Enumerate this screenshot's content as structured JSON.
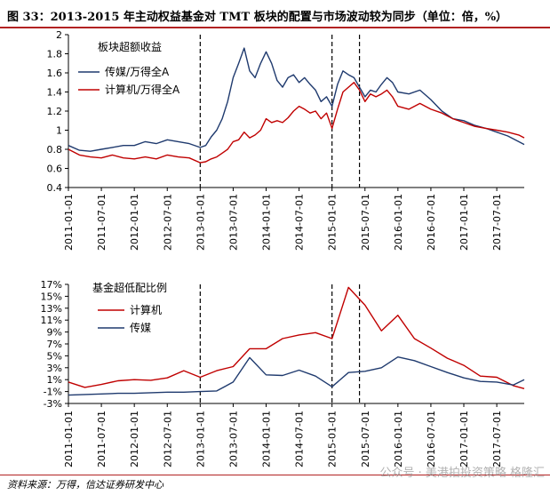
{
  "figure": {
    "title": "图 33：2013-2015 年主动权益基金对 TMT 板块的配置与市场波动较为同步（单位：倍，%）",
    "source": "资料来源：万得，信达证券研发中心",
    "watermark": "公众号 · 美港拍投资策略  格隆汇"
  },
  "chart_data": [
    {
      "type": "line",
      "title": "板块超额收益",
      "xlabel": "",
      "ylabel": "",
      "ylim": [
        0.4,
        2.0
      ],
      "yticks": [
        "0.4",
        "0.6",
        "0.8",
        "1",
        "1.2",
        "1.4",
        "1.6",
        "1.8",
        "2"
      ],
      "xlim": [
        "2011-01-01",
        "2017-12-01"
      ],
      "x_tick_labels": [
        "2011-01-01",
        "2011-07-01",
        "2012-01-01",
        "2012-07-01",
        "2013-01-01",
        "2013-07-01",
        "2014-01-01",
        "2014-07-01",
        "2015-01-01",
        "2015-07-01",
        "2016-01-01",
        "2016-07-01",
        "2017-01-01",
        "2017-07-01"
      ],
      "vertical_markers": [
        "2013-01-01",
        "2015-01-01",
        "2015-06-01"
      ],
      "legend_position": "top-left",
      "grid": false,
      "series": [
        {
          "name": "传媒/万得全A",
          "color": "#1f3a6e",
          "x": [
            "2011-01-01",
            "2011-03-01",
            "2011-05-01",
            "2011-07-01",
            "2011-09-01",
            "2011-11-01",
            "2012-01-01",
            "2012-03-01",
            "2012-05-01",
            "2012-07-01",
            "2012-09-01",
            "2012-11-01",
            "2013-01-01",
            "2013-02-01",
            "2013-03-01",
            "2013-04-01",
            "2013-05-01",
            "2013-06-01",
            "2013-07-01",
            "2013-08-01",
            "2013-09-01",
            "2013-10-01",
            "2013-11-01",
            "2013-12-01",
            "2014-01-01",
            "2014-02-01",
            "2014-03-01",
            "2014-04-01",
            "2014-05-01",
            "2014-06-01",
            "2014-07-01",
            "2014-08-01",
            "2014-09-01",
            "2014-10-01",
            "2014-11-01",
            "2014-12-01",
            "2015-01-01",
            "2015-02-01",
            "2015-03-01",
            "2015-04-01",
            "2015-05-01",
            "2015-06-01",
            "2015-07-01",
            "2015-08-01",
            "2015-09-01",
            "2015-10-01",
            "2015-11-01",
            "2015-12-01",
            "2016-01-01",
            "2016-03-01",
            "2016-05-01",
            "2016-07-01",
            "2016-09-01",
            "2016-11-01",
            "2017-01-01",
            "2017-03-01",
            "2017-05-01",
            "2017-07-01",
            "2017-09-01",
            "2017-11-01",
            "2017-12-01"
          ],
          "values": [
            0.84,
            0.79,
            0.78,
            0.8,
            0.82,
            0.84,
            0.84,
            0.88,
            0.86,
            0.9,
            0.88,
            0.86,
            0.82,
            0.84,
            0.93,
            1.0,
            1.12,
            1.3,
            1.55,
            1.7,
            1.86,
            1.62,
            1.55,
            1.7,
            1.82,
            1.7,
            1.52,
            1.45,
            1.55,
            1.58,
            1.5,
            1.55,
            1.48,
            1.42,
            1.3,
            1.35,
            1.25,
            1.48,
            1.62,
            1.58,
            1.55,
            1.45,
            1.35,
            1.42,
            1.4,
            1.48,
            1.55,
            1.5,
            1.4,
            1.38,
            1.42,
            1.32,
            1.2,
            1.12,
            1.1,
            1.05,
            1.02,
            0.98,
            0.94,
            0.88,
            0.85
          ]
        },
        {
          "name": "计算机/万得全A",
          "color": "#c00000",
          "x": [
            "2011-01-01",
            "2011-03-01",
            "2011-05-01",
            "2011-07-01",
            "2011-09-01",
            "2011-11-01",
            "2012-01-01",
            "2012-03-01",
            "2012-05-01",
            "2012-07-01",
            "2012-09-01",
            "2012-11-01",
            "2013-01-01",
            "2013-02-01",
            "2013-03-01",
            "2013-04-01",
            "2013-05-01",
            "2013-06-01",
            "2013-07-01",
            "2013-08-01",
            "2013-09-01",
            "2013-10-01",
            "2013-11-01",
            "2013-12-01",
            "2014-01-01",
            "2014-02-01",
            "2014-03-01",
            "2014-04-01",
            "2014-05-01",
            "2014-06-01",
            "2014-07-01",
            "2014-08-01",
            "2014-09-01",
            "2014-10-01",
            "2014-11-01",
            "2014-12-01",
            "2015-01-01",
            "2015-02-01",
            "2015-03-01",
            "2015-04-01",
            "2015-05-01",
            "2015-06-01",
            "2015-07-01",
            "2015-08-01",
            "2015-09-01",
            "2015-10-01",
            "2015-11-01",
            "2015-12-01",
            "2016-01-01",
            "2016-03-01",
            "2016-05-01",
            "2016-07-01",
            "2016-09-01",
            "2016-11-01",
            "2017-01-01",
            "2017-03-01",
            "2017-05-01",
            "2017-07-01",
            "2017-09-01",
            "2017-11-01",
            "2017-12-01"
          ],
          "values": [
            0.8,
            0.74,
            0.72,
            0.71,
            0.74,
            0.71,
            0.7,
            0.72,
            0.7,
            0.74,
            0.72,
            0.71,
            0.66,
            0.67,
            0.7,
            0.72,
            0.76,
            0.8,
            0.88,
            0.9,
            0.98,
            0.92,
            0.95,
            1.0,
            1.12,
            1.08,
            1.1,
            1.08,
            1.13,
            1.2,
            1.25,
            1.22,
            1.18,
            1.2,
            1.12,
            1.18,
            1.02,
            1.22,
            1.4,
            1.45,
            1.5,
            1.42,
            1.3,
            1.38,
            1.35,
            1.38,
            1.42,
            1.35,
            1.25,
            1.22,
            1.28,
            1.22,
            1.18,
            1.12,
            1.08,
            1.04,
            1.02,
            1.0,
            0.98,
            0.95,
            0.92
          ]
        }
      ]
    },
    {
      "type": "line",
      "title": "基金超低配比例",
      "xlabel": "",
      "ylabel": "",
      "ylim": [
        -3,
        17
      ],
      "yticks": [
        "-3%",
        "-1%",
        "1%",
        "3%",
        "5%",
        "7%",
        "9%",
        "11%",
        "13%",
        "15%",
        "17%"
      ],
      "xlim": [
        "2011-01-01",
        "2017-12-01"
      ],
      "x_tick_labels": [
        "2011-01-01",
        "2011-07-01",
        "2012-01-01",
        "2012-07-01",
        "2013-01-01",
        "2013-07-01",
        "2014-01-01",
        "2014-07-01",
        "2015-01-01",
        "2015-07-01",
        "2016-01-01",
        "2016-07-01",
        "2017-01-01",
        "2017-07-01"
      ],
      "vertical_markers": [
        "2013-01-01",
        "2015-01-01",
        "2015-06-01"
      ],
      "legend_position": "top-left",
      "grid": false,
      "series": [
        {
          "name": "计算机",
          "color": "#c00000",
          "x": [
            "2011-01-01",
            "2011-04-01",
            "2011-07-01",
            "2011-10-01",
            "2012-01-01",
            "2012-04-01",
            "2012-07-01",
            "2012-10-01",
            "2013-01-01",
            "2013-04-01",
            "2013-07-01",
            "2013-10-01",
            "2014-01-01",
            "2014-04-01",
            "2014-07-01",
            "2014-10-01",
            "2015-01-01",
            "2015-04-01",
            "2015-07-01",
            "2015-10-01",
            "2016-01-01",
            "2016-04-01",
            "2016-07-01",
            "2016-10-01",
            "2017-01-01",
            "2017-04-01",
            "2017-07-01",
            "2017-10-01",
            "2017-12-01"
          ],
          "values": [
            0.6,
            -0.3,
            0.2,
            0.8,
            1.0,
            0.9,
            1.3,
            2.5,
            1.4,
            2.5,
            3.2,
            6.2,
            6.2,
            7.9,
            8.5,
            8.9,
            7.9,
            16.5,
            13.5,
            9.2,
            11.8,
            7.9,
            6.3,
            4.6,
            3.4,
            1.6,
            1.4,
            0.0,
            -0.5
          ]
        },
        {
          "name": "传媒",
          "color": "#1f3a6e",
          "x": [
            "2011-01-01",
            "2011-04-01",
            "2011-07-01",
            "2011-10-01",
            "2012-01-01",
            "2012-04-01",
            "2012-07-01",
            "2012-10-01",
            "2013-01-01",
            "2013-04-01",
            "2013-07-01",
            "2013-10-01",
            "2014-01-01",
            "2014-04-01",
            "2014-07-01",
            "2014-10-01",
            "2015-01-01",
            "2015-04-01",
            "2015-07-01",
            "2015-10-01",
            "2016-01-01",
            "2016-04-01",
            "2016-07-01",
            "2016-10-01",
            "2017-01-01",
            "2017-04-01",
            "2017-07-01",
            "2017-10-01",
            "2017-12-01"
          ],
          "values": [
            -1.6,
            -1.5,
            -1.4,
            -1.3,
            -1.3,
            -1.2,
            -1.1,
            -1.1,
            -1.0,
            -0.9,
            0.6,
            4.7,
            1.8,
            1.7,
            2.6,
            1.6,
            -0.2,
            2.2,
            2.4,
            3.0,
            4.8,
            4.2,
            3.2,
            2.2,
            1.3,
            0.7,
            0.6,
            0.1,
            1.0
          ]
        }
      ]
    }
  ]
}
